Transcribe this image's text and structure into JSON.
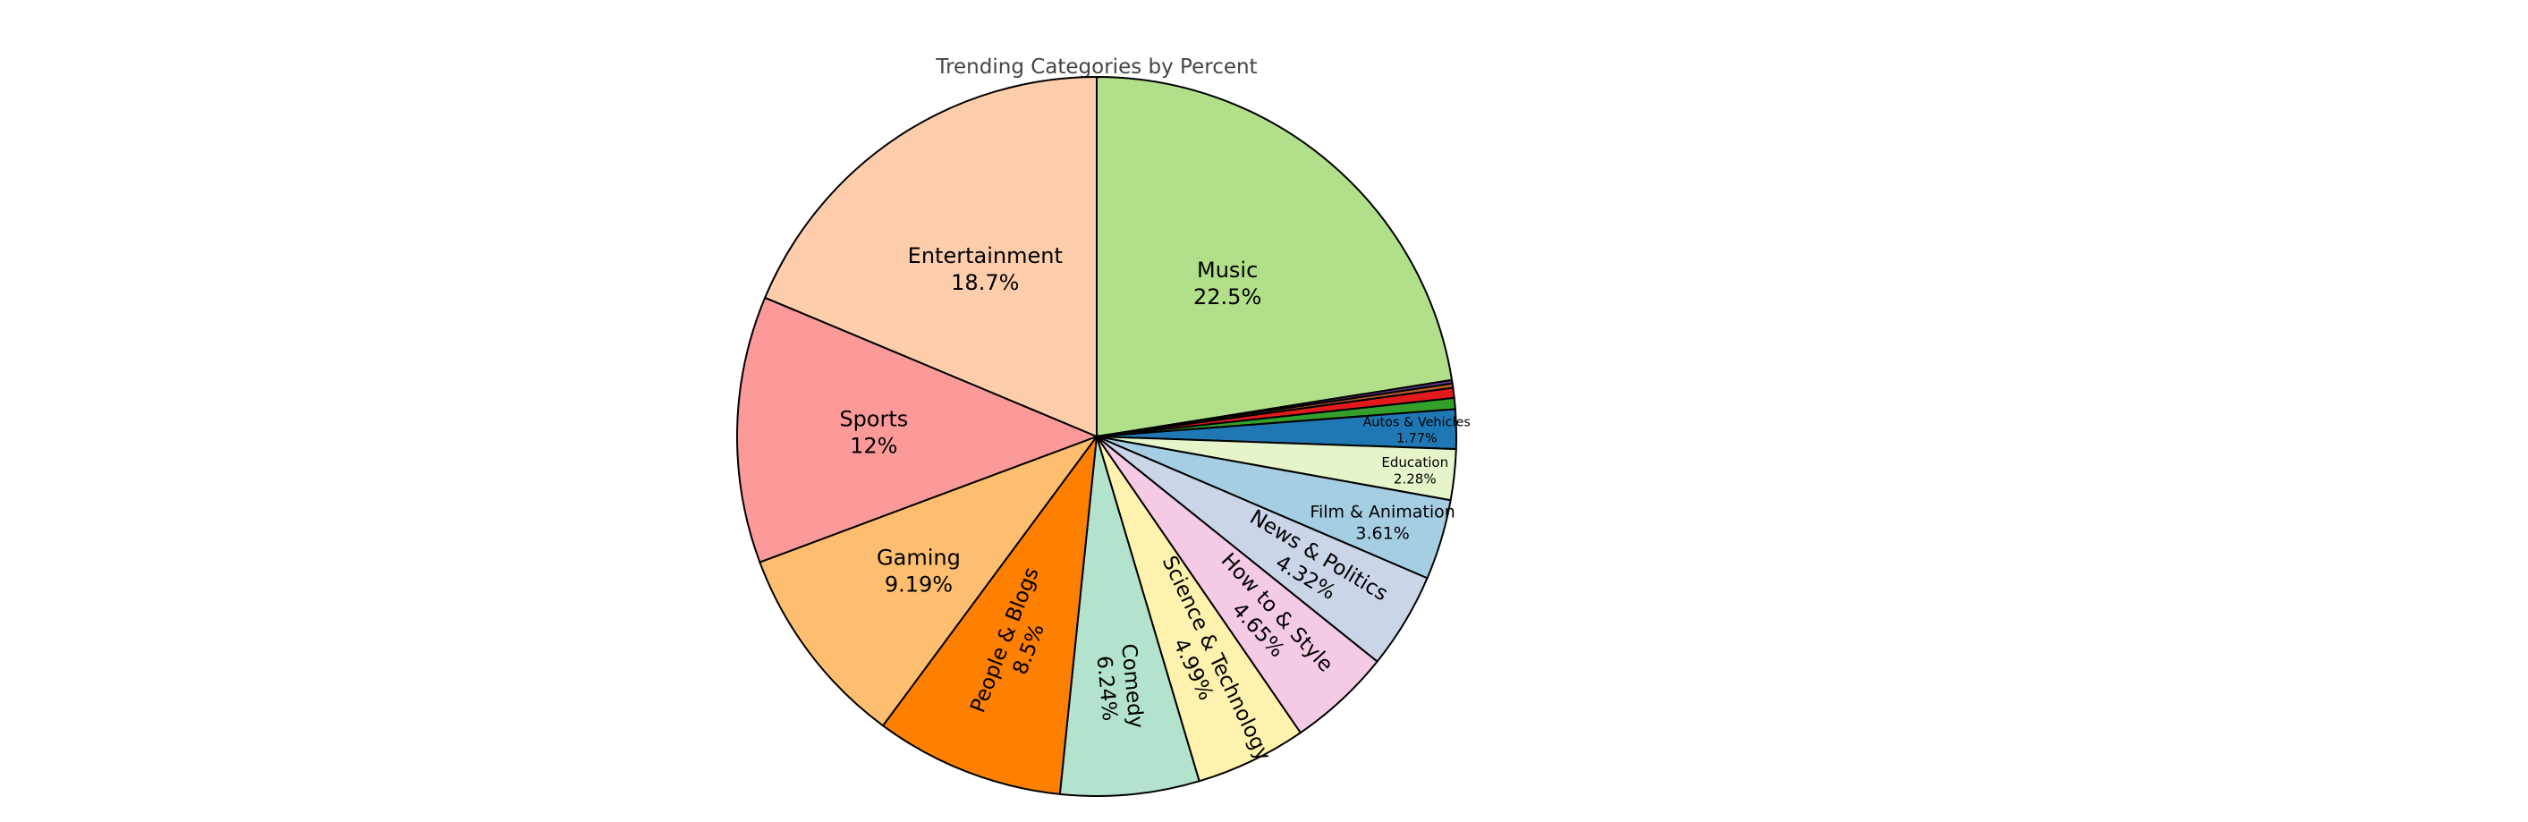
{
  "chart_data": {
    "type": "pie",
    "title": "Trending Categories by Percent",
    "start": "12 o'clock",
    "direction": "clockwise",
    "slices": [
      {
        "label": "Music",
        "value": 22.5,
        "color": "#b2df8a",
        "text_color": "#000000"
      },
      {
        "label": "",
        "value": 0.15,
        "color": "#6a3d9a",
        "text_color": "#000000"
      },
      {
        "label": "",
        "value": 0.2,
        "color": "#b15928",
        "text_color": "#000000"
      },
      {
        "label": "",
        "value": 0.45,
        "color": "#e31a1c",
        "text_color": "#000000"
      },
      {
        "label": "",
        "value": 0.5,
        "color": "#33a02c",
        "text_color": "#000000"
      },
      {
        "label": "Autos & Vehicles",
        "value": 1.77,
        "color": "#1f78b4",
        "text_color": "#000000"
      },
      {
        "label": "Education",
        "value": 2.28,
        "color": "#e5f5c9",
        "text_color": "#000000"
      },
      {
        "label": "Film & Animation",
        "value": 3.61,
        "color": "#a6cee3",
        "text_color": "#000000"
      },
      {
        "label": "News & Politics",
        "value": 4.32,
        "color": "#cbd5e8",
        "text_color": "#000000"
      },
      {
        "label": "How to & Style",
        "value": 4.65,
        "color": "#f4cae4",
        "text_color": "#000000"
      },
      {
        "label": "Science & Technology",
        "value": 4.99,
        "color": "#fff2ae",
        "text_color": "#000000"
      },
      {
        "label": "Comedy",
        "value": 6.24,
        "color": "#b3e2cd",
        "text_color": "#000000"
      },
      {
        "label": "People & Blogs",
        "value": 8.5,
        "color": "#ff7f00",
        "text_color": "#000000"
      },
      {
        "label": "Gaming",
        "value": 9.19,
        "color": "#fdbf6f",
        "text_color": "#000000"
      },
      {
        "label": "Sports",
        "value": 12,
        "color": "#fb9a99",
        "text_color": "#000000"
      },
      {
        "label": "Entertainment",
        "value": 18.7,
        "color": "#fdcdac",
        "text_color": "#000000"
      }
    ],
    "value_labels": [
      "22.5%",
      "",
      "",
      "",
      "",
      "1.77%",
      "2.28%",
      "3.61%",
      "4.32%",
      "4.65%",
      "4.99%",
      "6.24%",
      "8.5%",
      "9.19%",
      "12%",
      "18.7%"
    ],
    "legend": "none"
  }
}
